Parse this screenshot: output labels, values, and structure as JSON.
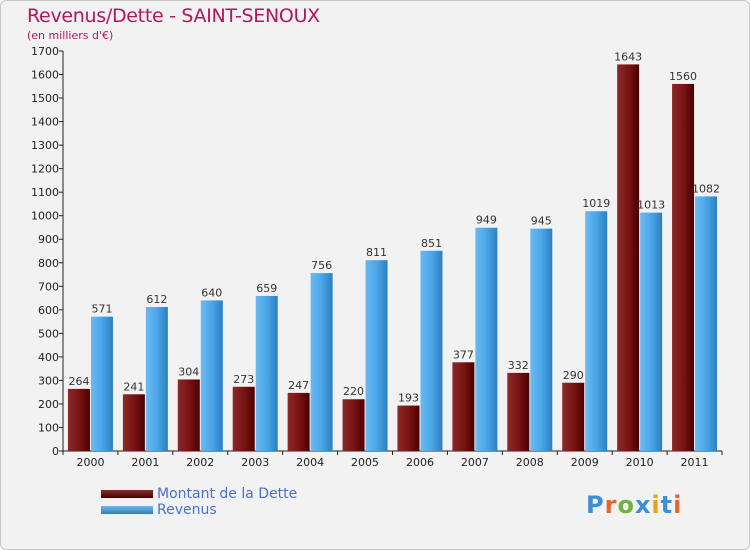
{
  "header": {
    "title": "Revenus/Dette - SAINT-SENOUX",
    "subtitle": "(en milliers d'€)"
  },
  "colors": {
    "dette": "#6b0a0a",
    "revenus": "#3f9ee0",
    "title": "#b0175e",
    "legend_text": "#4a6fd0"
  },
  "legend": {
    "items": [
      {
        "label": "Montant de la Dette",
        "color": "#6b0a0a"
      },
      {
        "label": "Revenus",
        "color": "#3f9ee0"
      }
    ]
  },
  "logo": {
    "text": "Proxiti"
  },
  "chart_data": {
    "type": "bar",
    "categories": [
      "2000",
      "2001",
      "2002",
      "2003",
      "2004",
      "2005",
      "2006",
      "2007",
      "2008",
      "2009",
      "2010",
      "2011"
    ],
    "series": [
      {
        "name": "Montant de la Dette",
        "values": [
          264,
          241,
          304,
          273,
          247,
          220,
          193,
          377,
          332,
          290,
          1643,
          1560
        ]
      },
      {
        "name": "Revenus",
        "values": [
          571,
          612,
          640,
          659,
          756,
          811,
          851,
          949,
          945,
          1019,
          1013,
          1082
        ]
      }
    ],
    "title": "Revenus/Dette - SAINT-SENOUX",
    "ylabel": "(en milliers d'€)",
    "ylim": [
      0,
      1700
    ],
    "yticks": [
      0,
      100,
      200,
      300,
      400,
      500,
      600,
      700,
      800,
      900,
      1000,
      1100,
      1200,
      1300,
      1400,
      1500,
      1600,
      1700
    ],
    "grid": false,
    "legend_position": "bottom-left"
  }
}
